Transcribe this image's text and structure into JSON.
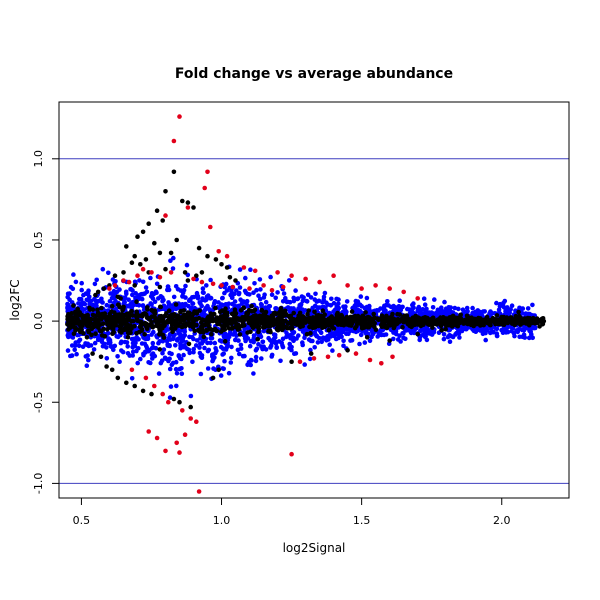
{
  "chart_data": {
    "type": "scatter",
    "title": "Fold change vs average abundance",
    "xlabel": "log2Signal",
    "ylabel": "log2FC",
    "xlim": [
      0.42,
      2.24
    ],
    "ylim": [
      -1.09,
      1.35
    ],
    "x_ticks": [
      0.5,
      1.0,
      1.5,
      2.0
    ],
    "x_tick_labels": [
      "0.5",
      "1.0",
      "1.5",
      "2.0"
    ],
    "y_ticks": [
      -1.0,
      -0.5,
      0.0,
      0.5,
      1.0
    ],
    "y_tick_labels": [
      "-1.0",
      "-0.5",
      "0.0",
      "0.5",
      "1.0"
    ],
    "reference_lines": [
      1.0,
      -1.0
    ],
    "colors": {
      "not_significant": "#000000",
      "significant_small_change": "#0000ff",
      "significant_large_change": "#e2001a",
      "reference_line": "#3f3fbf"
    },
    "series": [
      {
        "key": "black",
        "x": [
          0.83,
          0.86,
          0.88,
          0.8,
          0.9,
          0.77,
          0.79,
          0.74,
          0.72,
          0.84,
          0.92,
          0.7,
          0.76,
          0.82,
          0.69,
          0.66,
          0.95,
          0.98,
          1.0,
          1.02,
          0.73,
          0.78,
          0.71,
          0.87,
          0.68,
          0.65,
          0.62,
          0.8,
          1.03,
          1.05,
          0.6,
          0.58,
          0.56,
          0.55,
          0.63,
          0.64,
          0.88,
          0.91,
          0.74,
          0.69,
          0.78,
          0.93,
          0.99,
          0.97,
          1.25,
          1.32,
          1.45,
          1.52,
          1.6,
          1.7,
          1.8,
          1.9,
          2.0,
          2.05,
          2.1,
          2.15,
          0.45,
          0.46,
          0.48,
          0.5,
          0.52,
          0.54,
          0.57,
          0.59,
          0.61,
          0.63,
          0.66,
          0.69,
          0.72,
          0.75,
          0.83,
          0.85,
          0.89
        ],
        "y": [
          0.92,
          0.74,
          0.73,
          0.8,
          0.7,
          0.68,
          0.62,
          0.6,
          0.55,
          0.5,
          0.45,
          0.52,
          0.48,
          0.42,
          0.4,
          0.46,
          0.4,
          0.38,
          0.35,
          0.33,
          0.38,
          0.42,
          0.35,
          0.3,
          0.36,
          0.3,
          0.28,
          0.32,
          0.27,
          0.25,
          0.22,
          0.2,
          0.18,
          0.16,
          0.15,
          0.14,
          0.25,
          0.28,
          0.3,
          0.22,
          0.21,
          0.3,
          -0.3,
          -0.35,
          -0.25,
          -0.2,
          -0.18,
          -0.1,
          -0.12,
          -0.08,
          -0.05,
          -0.03,
          0.02,
          0.03,
          0.01,
          0.0,
          -0.02,
          0.03,
          0.04,
          -0.05,
          -0.1,
          -0.2,
          -0.22,
          -0.28,
          -0.3,
          -0.35,
          -0.38,
          -0.4,
          -0.43,
          -0.45,
          -0.48,
          -0.5,
          -0.53
        ]
      },
      {
        "key": "red",
        "x": [
          0.85,
          0.83,
          0.95,
          0.94,
          0.88,
          0.8,
          0.96,
          0.99,
          1.02,
          1.08,
          1.12,
          1.2,
          1.25,
          1.3,
          1.35,
          1.4,
          1.45,
          1.5,
          1.55,
          1.6,
          1.65,
          1.7,
          0.75,
          0.7,
          0.65,
          0.62,
          0.6,
          0.67,
          0.72,
          0.78,
          0.82,
          0.9,
          0.93,
          0.97,
          1.0,
          1.04,
          1.1,
          1.15,
          1.18,
          1.22,
          1.28,
          1.33,
          1.38,
          1.42,
          1.48,
          1.53,
          1.57,
          1.61,
          0.73,
          0.68,
          0.76,
          0.79,
          0.81,
          0.86,
          0.89,
          0.91,
          0.87,
          0.84,
          0.74,
          0.77,
          0.8,
          0.85,
          0.92,
          1.25
        ],
        "y": [
          1.26,
          1.11,
          0.92,
          0.82,
          0.7,
          0.65,
          0.58,
          0.43,
          0.4,
          0.33,
          0.31,
          0.3,
          0.28,
          0.26,
          0.24,
          0.28,
          0.22,
          0.2,
          0.22,
          0.2,
          0.18,
          0.14,
          0.3,
          0.28,
          0.25,
          0.22,
          0.2,
          0.24,
          0.32,
          0.27,
          0.3,
          0.26,
          0.24,
          0.23,
          0.22,
          0.21,
          0.2,
          0.22,
          0.19,
          0.21,
          -0.25,
          -0.23,
          -0.22,
          -0.21,
          -0.2,
          -0.24,
          -0.26,
          -0.22,
          -0.35,
          -0.3,
          -0.4,
          -0.45,
          -0.5,
          -0.55,
          -0.6,
          -0.62,
          -0.7,
          -0.75,
          -0.68,
          -0.72,
          -0.8,
          -0.81,
          -1.05,
          -0.82
        ]
      }
    ]
  }
}
